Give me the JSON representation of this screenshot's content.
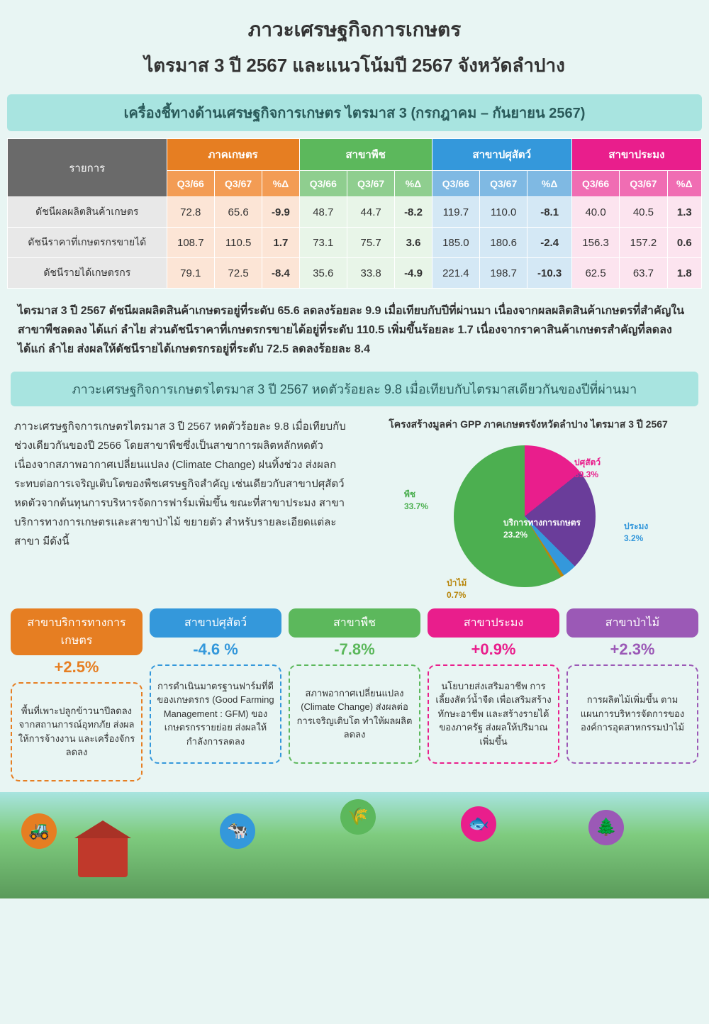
{
  "header": {
    "title1": "ภาวะเศรษฐกิจการเกษตร",
    "title2": "ไตรมาส 3 ปี 2567 และแนวโน้มปี 2567 จังหวัดลำปาง"
  },
  "banner1": "เครื่องชี้ทางด้านเศรษฐกิจการเกษตร ไตรมาส 3 (กรกฎาคม – กันยายน 2567)",
  "table": {
    "row_header": "รายการ",
    "groups": [
      {
        "name": "ภาคเกษตร",
        "cls": "orange"
      },
      {
        "name": "สาขาพืช",
        "cls": "green"
      },
      {
        "name": "สาขาปศุสัตว์",
        "cls": "blue"
      },
      {
        "name": "สาขาประมง",
        "cls": "pink"
      }
    ],
    "subcols": [
      "Q3/66",
      "Q3/67",
      "%Δ"
    ],
    "rows": [
      {
        "label": "ดัชนีผลผลิตสินค้าเกษตร",
        "vals": [
          "72.8",
          "65.6",
          "-9.9",
          "48.7",
          "44.7",
          "-8.2",
          "119.7",
          "110.0",
          "-8.1",
          "40.0",
          "40.5",
          "1.3"
        ]
      },
      {
        "label": "ดัชนีราคาที่เกษตรกรขายได้",
        "vals": [
          "108.7",
          "110.5",
          "1.7",
          "73.1",
          "75.7",
          "3.6",
          "185.0",
          "180.6",
          "-2.4",
          "156.3",
          "157.2",
          "0.6"
        ]
      },
      {
        "label": "ดัชนีรายได้เกษตรกร",
        "vals": [
          "79.1",
          "72.5",
          "-8.4",
          "35.6",
          "33.8",
          "-4.9",
          "221.4",
          "198.7",
          "-10.3",
          "62.5",
          "63.7",
          "1.8"
        ]
      }
    ]
  },
  "para1": "ไตรมาส 3 ปี 2567 ดัชนีผลผลิตสินค้าเกษตรอยู่ที่ระดับ 65.6 ลดลงร้อยละ 9.9 เมื่อเทียบกับปีที่ผ่านมา เนื่องจากผลผลิตสินค้าเกษตรที่สำคัญในสาขาพืชลดลง ได้แก่ ลำไย ส่วนดัชนีราคาที่เกษตรกรขายได้อยู่ที่ระดับ 110.5 เพิ่มขึ้นร้อยละ 1.7 เนื่องจากราคาสินค้าเกษตรสำคัญที่ลดลง ได้แก่ ลำไย ส่งผลให้ดัชนีรายได้เกษตรกรอยู่ที่ระดับ 72.5 ลดลงร้อยละ 8.4",
  "banner2": "ภาวะเศรษฐกิจการเกษตรไตรมาส 3 ปี 2567 หดตัวร้อยละ 9.8 เมื่อเทียบกับไตรมาสเดียวกันของปีที่ผ่านมา",
  "mid_text": "ภาวะเศรษฐกิจการเกษตรไตรมาส 3 ปี 2567 หดตัวร้อยละ 9.8 เมื่อเทียบกับ ช่วงเดียวกันของปี 2566 โดยสาขาพืชซึ่งเป็นสาขาการผลิตหลักหดตัว เนื่องจากสภาพอากาศเปลี่ยนแปลง (Climate Change)  ฝนทิ้งช่วง ส่งผลกระทบต่อการเจริญเติบโตของพืชเศรษฐกิจสำคัญ เช่นเดียวกับสาขาปศุสัตว์หดตัวจากต้นทุนการบริหารจัดการฟาร์มเพิ่มขึ้น ขณะที่สาขาประมง สาขาบริการทางการเกษตรและสาขาป่าไม้ ขยายตัว สำหรับรายละเอียดแต่ละสาขา มีดังนี้",
  "pie": {
    "title": "โครงสร้างมูลค่า GPP ภาคเกษตรจังหวัดลำปาง ไตรมาส 3 ปี 2567",
    "slices": [
      {
        "label": "ปศุสัตว์",
        "pct": "39.3%",
        "color": "#e91e8c",
        "angle": 141.5
      },
      {
        "label": "บริการทางการเกษตร",
        "pct": "23.2%",
        "color": "#6a3d9a",
        "angle": 83.5
      },
      {
        "label": "ประมง",
        "pct": "3.2%",
        "color": "#3498db",
        "angle": 11.5
      },
      {
        "label": "ป่าไม้",
        "pct": "0.7%",
        "color": "#b8860b",
        "angle": 2.5
      },
      {
        "label": "พืช",
        "pct": "33.7%",
        "color": "#4caf50",
        "angle": 121.0
      }
    ]
  },
  "cards": [
    {
      "cls": "c-orange",
      "title": "สาขาบริการทางการเกษตร",
      "pct": "+2.5%",
      "body": "พื้นที่เพาะปลูกข้าวนาปีลดลง จากสถานการณ์อุทกภัย ส่งผลให้การจ้างงาน และเครื่องจักรลดลง"
    },
    {
      "cls": "c-blue",
      "title": "สาขาปศุสัตว์",
      "pct": "-4.6 %",
      "body": "การดำเนินมาตรฐานฟาร์มที่ดี ของเกษตรกร (Good Farming Management : GFM) ของเกษตรกรรายย่อย ส่งผลให้กำลังการลดลง"
    },
    {
      "cls": "c-green",
      "title": "สาขาพืช",
      "pct": "-7.8%",
      "body": "สภาพอากาศเปลี่ยนแปลง (Climate Change) ส่งผลต่อการเจริญเติบโต ทำให้ผลผลิตลดลง"
    },
    {
      "cls": "c-pink",
      "title": "สาขาประมง",
      "pct": "+0.9%",
      "body": "นโยบายส่งเสริมอาชีพ การเลี้ยงสัตว์น้ำจืด เพื่อเสริมสร้างทักษะอาชีพ และสร้างรายได้ของภาครัฐ ส่งผลให้ปริมาณเพิ่มขึ้น"
    },
    {
      "cls": "c-purple",
      "title": "สาขาป่าไม้",
      "pct": "+2.3%",
      "body": "การผลิตไม้เพิ่มขึ้น ตามแผนการบริหารจัดการขององค์การอุตสาหกรรมป่าไม้"
    }
  ]
}
